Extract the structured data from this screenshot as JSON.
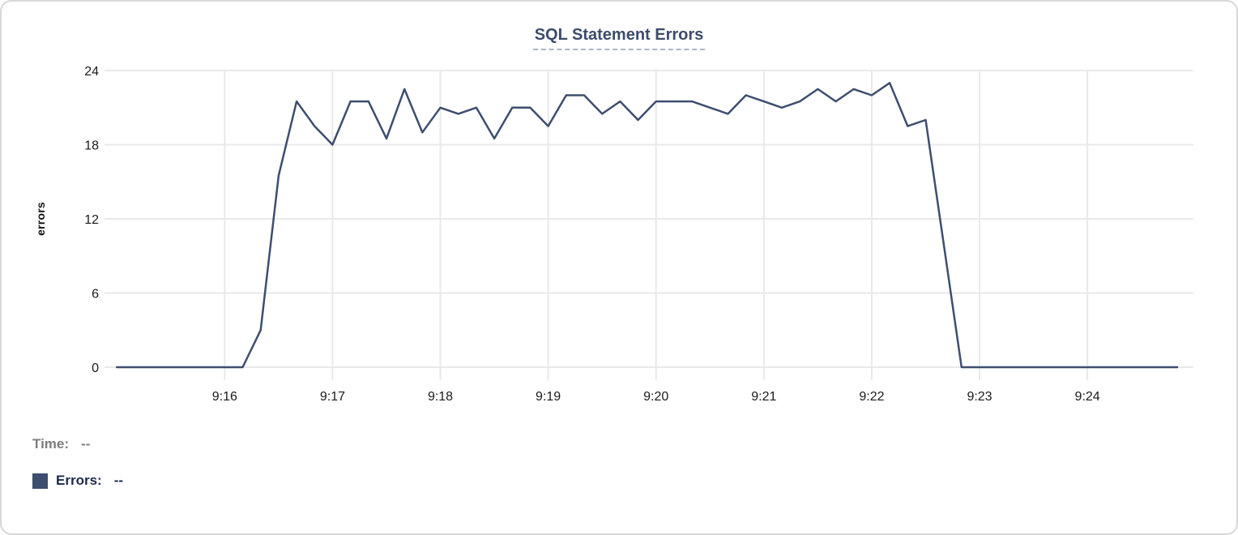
{
  "chart_data": {
    "type": "line",
    "title": "SQL Statement Errors",
    "xlabel": "",
    "ylabel": "errors",
    "ylim": [
      0,
      24
    ],
    "yticks": [
      0,
      6,
      12,
      18,
      24
    ],
    "xticks": [
      "9:16",
      "9:17",
      "9:18",
      "9:19",
      "9:20",
      "9:21",
      "9:22",
      "9:23",
      "9:24"
    ],
    "xlim": [
      "9:14:59",
      "9:24:59"
    ],
    "grid": true,
    "legend_position": "bottom-left",
    "x": [
      "9:15:00",
      "9:15:10",
      "9:15:20",
      "9:15:30",
      "9:15:40",
      "9:15:50",
      "9:16:00",
      "9:16:10",
      "9:16:20",
      "9:16:30",
      "9:16:40",
      "9:16:50",
      "9:17:00",
      "9:17:10",
      "9:17:20",
      "9:17:30",
      "9:17:40",
      "9:17:50",
      "9:18:00",
      "9:18:10",
      "9:18:20",
      "9:18:30",
      "9:18:40",
      "9:18:50",
      "9:19:00",
      "9:19:10",
      "9:19:20",
      "9:19:30",
      "9:19:40",
      "9:19:50",
      "9:20:00",
      "9:20:10",
      "9:20:20",
      "9:20:30",
      "9:20:40",
      "9:20:50",
      "9:21:00",
      "9:21:10",
      "9:21:20",
      "9:21:30",
      "9:21:40",
      "9:21:50",
      "9:22:00",
      "9:22:10",
      "9:22:20",
      "9:22:30",
      "9:22:40",
      "9:22:50",
      "9:23:00",
      "9:23:10",
      "9:23:20",
      "9:23:30",
      "9:23:40",
      "9:23:50",
      "9:24:00",
      "9:24:10",
      "9:24:20",
      "9:24:30",
      "9:24:40",
      "9:24:50"
    ],
    "series": [
      {
        "name": "Errors",
        "color": "#3e4e6e",
        "values": [
          0,
          0,
          0,
          0,
          0,
          0,
          0,
          0,
          3,
          15.5,
          21.5,
          19.5,
          18,
          21.5,
          21.5,
          18.5,
          22.5,
          19,
          21,
          20.5,
          21,
          18.5,
          21,
          21,
          19.5,
          22,
          22,
          20.5,
          21.5,
          20,
          21.5,
          21.5,
          21.5,
          21,
          20.5,
          22,
          21.5,
          21,
          21.5,
          22.5,
          21.5,
          22.5,
          22,
          23,
          19.5,
          20,
          10,
          0,
          0,
          0,
          0,
          0,
          0,
          0,
          0,
          0,
          0,
          0,
          0,
          0
        ]
      }
    ]
  },
  "hover_readout": {
    "time_label": "Time:",
    "time_value": "--",
    "errors_label": "Errors:",
    "errors_value": "--"
  },
  "colors": {
    "line": "#3e4e6e",
    "title": "#3d4c6b",
    "title_underline": "#a9b6cb",
    "grid": "#e9e9e9",
    "axis_text": "#1a1a1a",
    "readout_time": "#7d7d7d",
    "readout_errors": "#1c2a4d",
    "card_border": "#d8d8d8"
  }
}
